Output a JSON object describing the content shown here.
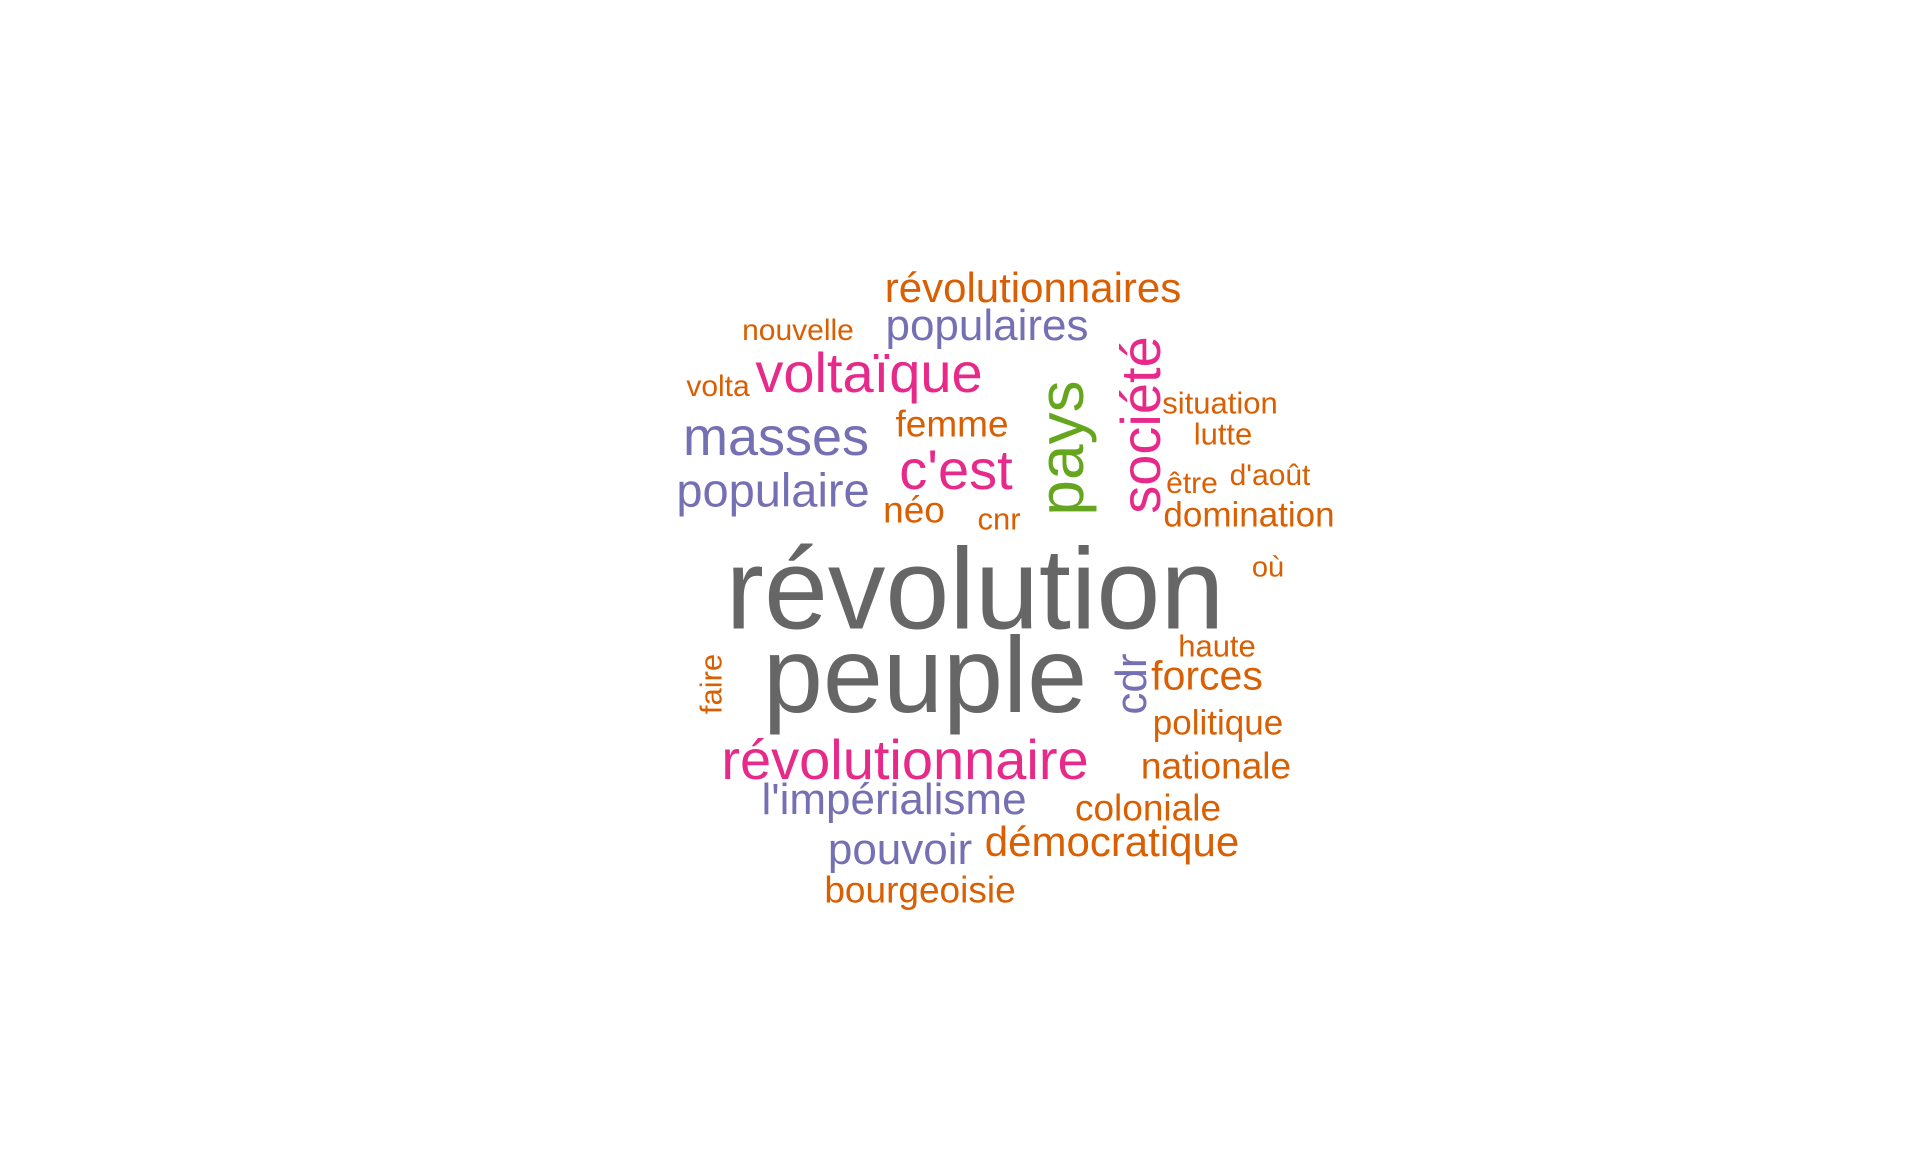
{
  "colors": {
    "gray": "#666666",
    "pink": "#e7298a",
    "purple": "#7570b3",
    "orange": "#d95f02",
    "green": "#66a61e"
  },
  "words": {
    "revolution": "révolution",
    "peuple": "peuple",
    "revolutionnaire": "révolutionnaire",
    "limperialisme": "l'impérialisme",
    "pouvoir": "pouvoir",
    "democratique": "démocratique",
    "coloniale": "coloniale",
    "bourgeoisie": "bourgeoisie",
    "nationale": "nationale",
    "politique": "politique",
    "forces": "forces",
    "haute": "haute",
    "ou": "où",
    "cdr": "cdr",
    "faire": "faire",
    "revolutionnaires": "révolutionnaires",
    "populaires": "populaires",
    "nouvelle": "nouvelle",
    "voltaique": "voltaïque",
    "volta": "volta",
    "masses": "masses",
    "femme": "femme",
    "cest": "c'est",
    "populaire": "populaire",
    "neo": "néo",
    "cnr": "cnr",
    "pays": "pays",
    "societe": "société",
    "situation": "situation",
    "lutte": "lutte",
    "etre": "être",
    "daout": "d'août",
    "domination": "domination"
  }
}
